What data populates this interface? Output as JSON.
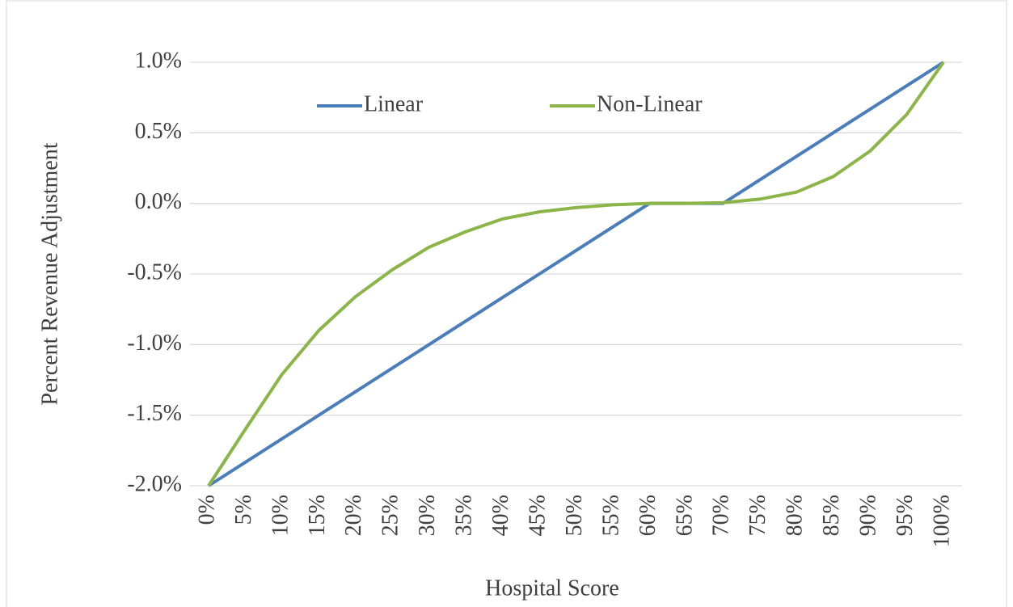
{
  "chart_data": {
    "type": "line",
    "x_label": "Hospital Score",
    "y_label": "Percent Revenue Adjustment",
    "categories": [
      "0%",
      "5%",
      "10%",
      "15%",
      "20%",
      "25%",
      "30%",
      "35%",
      "40%",
      "45%",
      "50%",
      "55%",
      "60%",
      "65%",
      "70%",
      "75%",
      "80%",
      "85%",
      "90%",
      "95%",
      "100%"
    ],
    "series": [
      {
        "name": "Linear",
        "color": "#4a7ebb",
        "values": [
          -2,
          -1.8333,
          -1.6667,
          -1.5,
          -1.3333,
          -1.1667,
          -1,
          -0.8333,
          -0.6667,
          -0.5,
          -0.3333,
          -0.1667,
          0,
          0,
          0,
          0.1667,
          0.3333,
          0.5,
          0.6667,
          0.8333,
          1
        ]
      },
      {
        "name": "Non-Linear",
        "color": "#8cb548",
        "values": [
          -2,
          -1.6,
          -1.21,
          -0.9,
          -0.66,
          -0.47,
          -0.31,
          -0.2,
          -0.11,
          -0.06,
          -0.03,
          -0.01,
          0,
          0,
          0.005,
          0.03,
          0.08,
          0.19,
          0.37,
          0.63,
          1
        ]
      }
    ],
    "ylim": [
      -2,
      1
    ],
    "yticks": [
      {
        "value": -2,
        "label": "-2.0%"
      },
      {
        "value": -1.5,
        "label": "-1.5%"
      },
      {
        "value": -1,
        "label": "-1.0%"
      },
      {
        "value": -0.5,
        "label": "-0.5%"
      },
      {
        "value": 0,
        "label": "0.0%"
      },
      {
        "value": 0.5,
        "label": "0.5%"
      },
      {
        "value": 1,
        "label": "1.0%"
      }
    ],
    "grid": true,
    "legend": "top"
  }
}
